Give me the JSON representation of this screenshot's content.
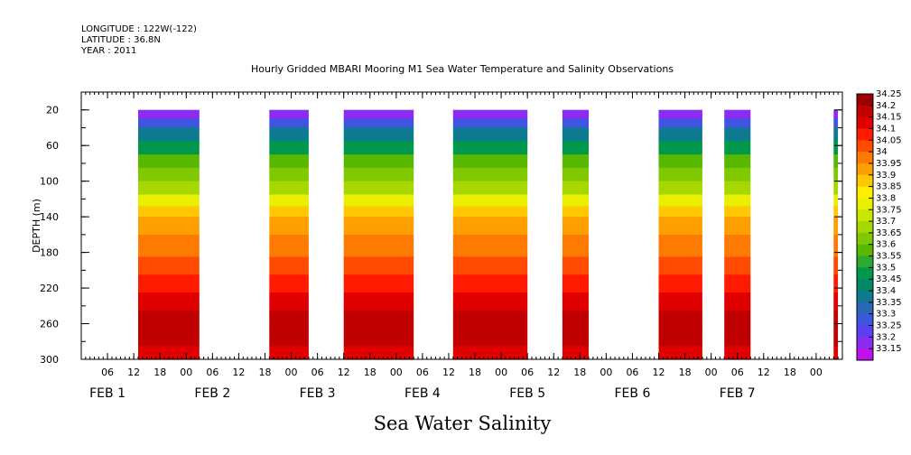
{
  "header": {
    "longitude": "LONGITUDE : 122W(-122)",
    "latitude": "LATITUDE : 36.8N",
    "year": "YEAR : 2011"
  },
  "chart_data": {
    "type": "heatmap",
    "title": "Hourly Gridded MBARI Mooring M1 Sea Water Temperature and Salinity Observations",
    "ylabel": "DEPTH (m)",
    "footer_label": "Sea Water Salinity",
    "ylim": [
      300,
      0
    ],
    "yticks": [
      20,
      60,
      100,
      140,
      180,
      220,
      260,
      300
    ],
    "x_start_hour": 0,
    "x_end_hour": 174,
    "hour_ticks": [
      {
        "h": 6,
        "label": "06"
      },
      {
        "h": 12,
        "label": "12"
      },
      {
        "h": 18,
        "label": "18"
      },
      {
        "h": 24,
        "label": "00"
      },
      {
        "h": 30,
        "label": "06"
      },
      {
        "h": 36,
        "label": "12"
      },
      {
        "h": 42,
        "label": "18"
      },
      {
        "h": 48,
        "label": "00"
      },
      {
        "h": 54,
        "label": "06"
      },
      {
        "h": 60,
        "label": "12"
      },
      {
        "h": 66,
        "label": "18"
      },
      {
        "h": 72,
        "label": "00"
      },
      {
        "h": 78,
        "label": "06"
      },
      {
        "h": 84,
        "label": "12"
      },
      {
        "h": 90,
        "label": "18"
      },
      {
        "h": 96,
        "label": "00"
      },
      {
        "h": 102,
        "label": "06"
      },
      {
        "h": 108,
        "label": "12"
      },
      {
        "h": 114,
        "label": "18"
      },
      {
        "h": 120,
        "label": "00"
      },
      {
        "h": 126,
        "label": "06"
      },
      {
        "h": 132,
        "label": "12"
      },
      {
        "h": 138,
        "label": "18"
      },
      {
        "h": 144,
        "label": "00"
      },
      {
        "h": 150,
        "label": "06"
      },
      {
        "h": 156,
        "label": "12"
      },
      {
        "h": 162,
        "label": "18"
      },
      {
        "h": 168,
        "label": "00"
      }
    ],
    "day_labels": [
      {
        "h": 6,
        "label": "FEB  1"
      },
      {
        "h": 30,
        "label": "FEB  2"
      },
      {
        "h": 54,
        "label": "FEB  3"
      },
      {
        "h": 78,
        "label": "FEB  4"
      },
      {
        "h": 102,
        "label": "FEB  5"
      },
      {
        "h": 126,
        "label": "FEB  6"
      },
      {
        "h": 150,
        "label": "FEB  7"
      }
    ],
    "data_segments_hours": [
      [
        13,
        27
      ],
      [
        43,
        52
      ],
      [
        60,
        76
      ],
      [
        85,
        102
      ],
      [
        110,
        116
      ],
      [
        132,
        142
      ],
      [
        147,
        153
      ],
      [
        172,
        173
      ]
    ],
    "depth_profile": [
      {
        "depth": 20,
        "value": 33.22
      },
      {
        "depth": 30,
        "value": 33.32
      },
      {
        "depth": 40,
        "value": 33.42
      },
      {
        "depth": 55,
        "value": 33.5
      },
      {
        "depth": 70,
        "value": 33.58
      },
      {
        "depth": 85,
        "value": 33.65
      },
      {
        "depth": 100,
        "value": 33.72
      },
      {
        "depth": 115,
        "value": 33.8
      },
      {
        "depth": 128,
        "value": 33.88
      },
      {
        "depth": 140,
        "value": 33.95
      },
      {
        "depth": 160,
        "value": 34.02
      },
      {
        "depth": 185,
        "value": 34.06
      },
      {
        "depth": 205,
        "value": 34.1
      },
      {
        "depth": 225,
        "value": 34.15
      },
      {
        "depth": 245,
        "value": 34.22
      },
      {
        "depth": 265,
        "value": 34.2
      },
      {
        "depth": 285,
        "value": 34.15
      },
      {
        "depth": 300,
        "value": 34.12
      }
    ],
    "colorbar": {
      "labels": [
        "34.25",
        "34.2",
        "34.15",
        "34.1",
        "34.05",
        "34",
        "33.95",
        "33.9",
        "33.85",
        "33.8",
        "33.75",
        "33.7",
        "33.65",
        "33.6",
        "33.55",
        "33.5",
        "33.45",
        "33.4",
        "33.35",
        "33.3",
        "33.25",
        "33.2",
        "33.15"
      ],
      "colors": [
        "#9a0000",
        "#c00000",
        "#e00000",
        "#ff1a00",
        "#ff4a00",
        "#ff7a00",
        "#ffa000",
        "#ffc800",
        "#ffef00",
        "#e8f000",
        "#c8e600",
        "#a6d800",
        "#80c800",
        "#58b800",
        "#2ea830",
        "#00984a",
        "#008868",
        "#0e7a90",
        "#2a68b8",
        "#3c56e0",
        "#5a40f0",
        "#8a2cf2",
        "#c010f0"
      ]
    }
  }
}
